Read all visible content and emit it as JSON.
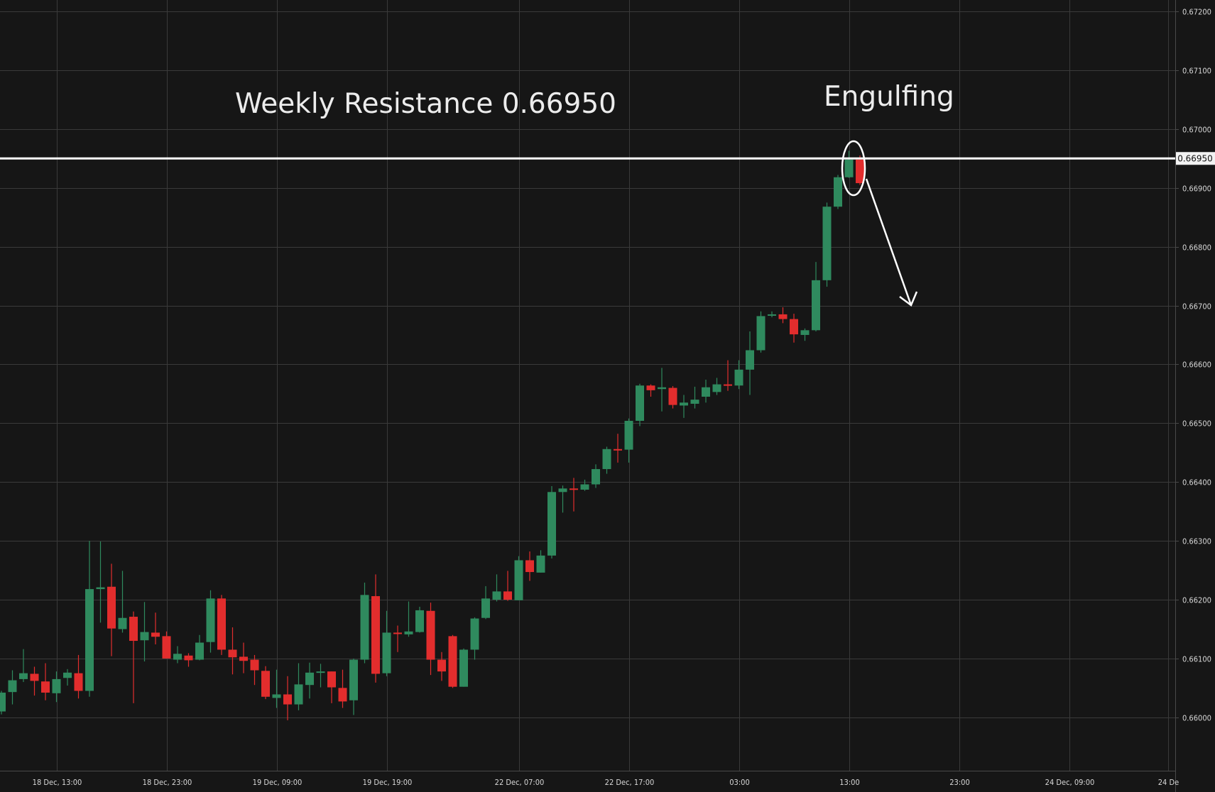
{
  "chart_data": {
    "type": "candlestick",
    "title": "",
    "annotations": {
      "resistance_label": "Weekly Resistance 0.66950",
      "pattern_label": "Engulfing",
      "resistance_price": 0.6695,
      "resistance_price_label": "0.66950"
    },
    "ylim": [
      0.6595,
      0.6722
    ],
    "y_ticks": [
      "0.67200",
      "0.67100",
      "0.67000",
      "0.66900",
      "0.66800",
      "0.66700",
      "0.66600",
      "0.66500",
      "0.66400",
      "0.66300",
      "0.66200",
      "0.66100",
      "0.66000"
    ],
    "y_tick_values": [
      0.672,
      0.671,
      0.67,
      0.669,
      0.668,
      0.667,
      0.666,
      0.665,
      0.664,
      0.663,
      0.662,
      0.661,
      0.66
    ],
    "x_ticks": [
      "18 Dec, 13:00",
      "18 Dec, 23:00",
      "19 Dec, 09:00",
      "19 Dec, 19:00",
      "22 Dec, 07:00",
      "22 Dec, 17:00",
      "03:00",
      "13:00",
      "23:00",
      "24 Dec, 09:00",
      "24 De"
    ],
    "x_tick_candle_index": [
      5,
      15,
      25,
      35,
      47,
      57,
      67,
      77,
      87,
      97,
      106
    ],
    "colors": {
      "up": "#2f8a5e",
      "down": "#e22d2d",
      "background": "#161616",
      "grid": "#3a3a3a"
    },
    "candles_ohlc": [
      [
        0.6601,
        0.66045,
        0.66005,
        0.66042
      ],
      [
        0.66043,
        0.6608,
        0.66022,
        0.66063
      ],
      [
        0.66065,
        0.66116,
        0.6606,
        0.66075
      ],
      [
        0.66074,
        0.66086,
        0.66037,
        0.66062
      ],
      [
        0.66061,
        0.66092,
        0.66029,
        0.66042
      ],
      [
        0.66041,
        0.66078,
        0.66026,
        0.66065
      ],
      [
        0.66067,
        0.66082,
        0.66054,
        0.66076
      ],
      [
        0.66075,
        0.66106,
        0.66032,
        0.66045
      ],
      [
        0.66045,
        0.663,
        0.66035,
        0.66218
      ],
      [
        0.66218,
        0.66299,
        0.66161,
        0.66221
      ],
      [
        0.66222,
        0.66261,
        0.66104,
        0.66151
      ],
      [
        0.6615,
        0.66249,
        0.66144,
        0.66169
      ],
      [
        0.66171,
        0.6618,
        0.66024,
        0.6613
      ],
      [
        0.66131,
        0.66196,
        0.66095,
        0.66145
      ],
      [
        0.66144,
        0.66178,
        0.66124,
        0.66137
      ],
      [
        0.66138,
        0.66146,
        0.661,
        0.661
      ],
      [
        0.66098,
        0.66121,
        0.66092,
        0.66108
      ],
      [
        0.66105,
        0.66109,
        0.66086,
        0.66097
      ],
      [
        0.66098,
        0.6614,
        0.66097,
        0.66127
      ],
      [
        0.66128,
        0.66216,
        0.6611,
        0.66202
      ],
      [
        0.66202,
        0.66208,
        0.66106,
        0.66115
      ],
      [
        0.66115,
        0.66153,
        0.66073,
        0.66102
      ],
      [
        0.66103,
        0.66127,
        0.66075,
        0.66096
      ],
      [
        0.66098,
        0.66106,
        0.66055,
        0.6608
      ],
      [
        0.66079,
        0.66087,
        0.66031,
        0.66035
      ],
      [
        0.66033,
        0.66081,
        0.66016,
        0.66039
      ],
      [
        0.66039,
        0.6607,
        0.65995,
        0.66022
      ],
      [
        0.66022,
        0.66092,
        0.66012,
        0.66056
      ],
      [
        0.66055,
        0.66093,
        0.66032,
        0.66076
      ],
      [
        0.66077,
        0.66091,
        0.66051,
        0.66078
      ],
      [
        0.66078,
        0.66078,
        0.66024,
        0.66051
      ],
      [
        0.6605,
        0.66081,
        0.66016,
        0.66027
      ],
      [
        0.66029,
        0.661,
        0.66004,
        0.66098
      ],
      [
        0.66098,
        0.66229,
        0.66092,
        0.66208
      ],
      [
        0.66206,
        0.66243,
        0.66059,
        0.66074
      ],
      [
        0.66075,
        0.66181,
        0.6607,
        0.66144
      ],
      [
        0.66144,
        0.66156,
        0.66111,
        0.66143
      ],
      [
        0.66141,
        0.66197,
        0.66137,
        0.66146
      ],
      [
        0.66145,
        0.66188,
        0.66144,
        0.66182
      ],
      [
        0.66181,
        0.66195,
        0.66072,
        0.66098
      ],
      [
        0.66098,
        0.66111,
        0.66062,
        0.66078
      ],
      [
        0.66138,
        0.6614,
        0.6605,
        0.66052
      ],
      [
        0.66052,
        0.66117,
        0.66052,
        0.66115
      ],
      [
        0.66115,
        0.6617,
        0.66098,
        0.66168
      ],
      [
        0.66169,
        0.66223,
        0.66167,
        0.66202
      ],
      [
        0.662,
        0.66243,
        0.66197,
        0.66214
      ],
      [
        0.66214,
        0.66249,
        0.66198,
        0.662
      ],
      [
        0.66199,
        0.66274,
        0.66199,
        0.66267
      ],
      [
        0.66267,
        0.66282,
        0.66232,
        0.66247
      ],
      [
        0.66246,
        0.66284,
        0.66246,
        0.66275
      ],
      [
        0.66275,
        0.66393,
        0.6627,
        0.66383
      ],
      [
        0.66383,
        0.66394,
        0.66348,
        0.66389
      ],
      [
        0.66389,
        0.66407,
        0.6635,
        0.66387
      ],
      [
        0.66387,
        0.66404,
        0.66385,
        0.66396
      ],
      [
        0.66396,
        0.6643,
        0.6639,
        0.66422
      ],
      [
        0.66422,
        0.6646,
        0.66414,
        0.66456
      ],
      [
        0.66456,
        0.66482,
        0.66433,
        0.66455
      ],
      [
        0.66455,
        0.66508,
        0.66433,
        0.66504
      ],
      [
        0.66504,
        0.66567,
        0.66495,
        0.66564
      ],
      [
        0.66564,
        0.66566,
        0.66545,
        0.66556
      ],
      [
        0.66558,
        0.66594,
        0.6652,
        0.66561
      ],
      [
        0.6656,
        0.66563,
        0.66525,
        0.66531
      ],
      [
        0.6653,
        0.66548,
        0.66509,
        0.66535
      ],
      [
        0.66533,
        0.66562,
        0.66525,
        0.6654
      ],
      [
        0.66545,
        0.66574,
        0.66535,
        0.66561
      ],
      [
        0.66553,
        0.66577,
        0.66548,
        0.66566
      ],
      [
        0.66566,
        0.66607,
        0.66555,
        0.66564
      ],
      [
        0.66564,
        0.66607,
        0.66558,
        0.66591
      ],
      [
        0.66591,
        0.66656,
        0.66548,
        0.66624
      ],
      [
        0.66624,
        0.6669,
        0.6662,
        0.66682
      ],
      [
        0.66683,
        0.6669,
        0.6668,
        0.66685
      ],
      [
        0.66685,
        0.66697,
        0.6667,
        0.66677
      ],
      [
        0.66677,
        0.66686,
        0.66637,
        0.66651
      ],
      [
        0.6665,
        0.66661,
        0.6664,
        0.66658
      ],
      [
        0.66658,
        0.66774,
        0.66656,
        0.66743
      ],
      [
        0.66743,
        0.66875,
        0.66732,
        0.66868
      ],
      [
        0.66868,
        0.66922,
        0.66864,
        0.66918
      ],
      [
        0.66918,
        0.66963,
        0.66917,
        0.66948
      ],
      [
        0.66948,
        0.66955,
        0.66905,
        0.66908
      ]
    ]
  }
}
